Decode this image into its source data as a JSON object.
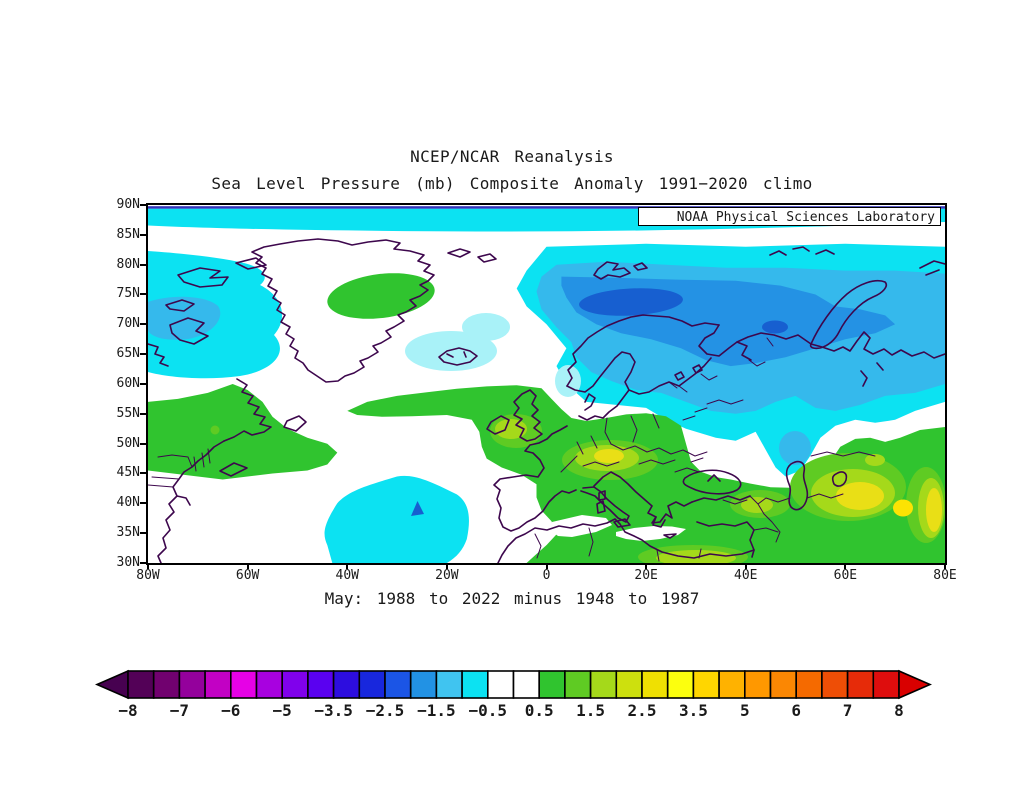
{
  "header": {
    "title": "NCEP/NCAR Reanalysis",
    "subtitle": "Sea Level Pressure (mb) Composite Anomaly 1991−2020 climo"
  },
  "map": {
    "credit": "NOAA Physical Sciences Laboratory",
    "caption": "May: 1988 to 2022 minus 1948 to 1987",
    "y_ticks": [
      "90N",
      "85N",
      "80N",
      "75N",
      "70N",
      "65N",
      "60N",
      "55N",
      "50N",
      "45N",
      "40N",
      "35N",
      "30N"
    ],
    "x_ticks": [
      "80W",
      "60W",
      "40W",
      "20W",
      "0",
      "20E",
      "40E",
      "60E",
      "80E"
    ]
  },
  "map_palette": {
    "cyan": "#0ce2f2",
    "pale_cyan": "#a9f2f8",
    "sky": "#35b9ec",
    "blue": "#2492e4",
    "core": "#175fd0",
    "green": "#30c42f",
    "green2": "#5fcb23",
    "yg": "#a5d91a",
    "yellow": "#e9df16",
    "gold": "#fce303",
    "white": "#ffffff",
    "coast": "#3d074d",
    "navy": "#3333bb",
    "frame": "#000000"
  },
  "colorbar": {
    "labels": [
      "−8",
      "−7",
      "−6",
      "−5",
      "−3.5",
      "−2.5",
      "−1.5",
      "−0.5",
      "0.5",
      "1.5",
      "2.5",
      "3.5",
      "5",
      "6",
      "7",
      "8"
    ],
    "colors": [
      "#530157",
      "#71016f",
      "#94019c",
      "#c201c4",
      "#e601e6",
      "#a801e0",
      "#8001ec",
      "#5a01f0",
      "#2d0ddf",
      "#1827dd",
      "#1b55e6",
      "#2292e4",
      "#40c4f0",
      "#0ce2f2",
      "#ffffff",
      "#ffffff",
      "#30c42f",
      "#5fcb23",
      "#a5d91a",
      "#cde00e",
      "#efe002",
      "#fcff0e",
      "#ffd600",
      "#ffb200",
      "#ff9800",
      "#fb8703",
      "#f56a00",
      "#ee4e06",
      "#e62b09",
      "#de0d0d"
    ],
    "left_arrow_color": "#470150",
    "right_arrow_color": "#d90000"
  },
  "chart_data": {
    "type": "heatmap",
    "title": "NCEP/NCAR Reanalysis",
    "subtitle": "Sea Level Pressure (mb) Composite Anomaly 1991−2020 climo",
    "variable": "Sea Level Pressure",
    "units": "mb",
    "composite": "May: 1988 to 2022 minus 1948 to 1987",
    "credit": "NOAA Physical Sciences Laboratory",
    "x_axis": {
      "ticks": [
        "80W",
        "60W",
        "40W",
        "20W",
        "0",
        "20E",
        "40E",
        "60E",
        "80E"
      ],
      "range_deg_lon": [
        -80,
        80
      ]
    },
    "y_axis": {
      "ticks": [
        "90N",
        "85N",
        "80N",
        "75N",
        "70N",
        "65N",
        "60N",
        "55N",
        "50N",
        "45N",
        "40N",
        "35N",
        "30N"
      ],
      "range_deg_lat": [
        30,
        90
      ]
    },
    "colorbar_levels": [
      -8,
      -7,
      -6,
      -5,
      -3.5,
      -2.5,
      -1.5,
      -0.5,
      0.5,
      1.5,
      2.5,
      3.5,
      5,
      6,
      7,
      8
    ],
    "anomaly_centers": [
      {
        "location": "Barents Sea / northern Scandinavia (~74N, 5E-30E)",
        "anomaly_mb": -3
      },
      {
        "location": "Arctic band 85N-90N (full width)",
        "anomaly_mb": -1
      },
      {
        "location": "Baffin Bay / Canadian Arctic (~70N, 70W)",
        "anomaly_mb": -1.5
      },
      {
        "location": "Subtropical North Atlantic (~38N, 28W)",
        "anomaly_mb": -2
      },
      {
        "location": "Volga region lobe (~48N, 48E)",
        "anomaly_mb": -1.5
      },
      {
        "location": "Central Greenland (~75N, 33W)",
        "anomaly_mb": 1
      },
      {
        "location": "Eastern Canada / Labrador (~51N, 65W)",
        "anomaly_mb": 1
      },
      {
        "location": "Central Europe / Alps (~48N, 12E)",
        "anomaly_mb": 2
      },
      {
        "location": "Central Asia east of Caspian (~40N, 65E)",
        "anomaly_mb": 3
      },
      {
        "location": "Near 72E, 39N (bright maximum)",
        "anomaly_mb": 3.5
      }
    ]
  }
}
